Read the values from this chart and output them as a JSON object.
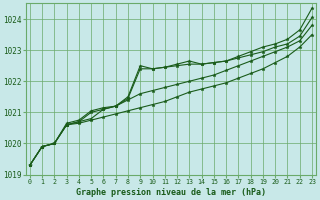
{
  "title": "Graphe pression niveau de la mer (hPa)",
  "bg_color": "#c8e8e8",
  "grid_color": "#6aaa6a",
  "line_color": "#1a5c1a",
  "marker_color": "#1a5c1a",
  "ylim": [
    1019.0,
    1024.5
  ],
  "xlim": [
    -0.3,
    23.3
  ],
  "yticks": [
    1019,
    1020,
    1021,
    1022,
    1023,
    1024
  ],
  "xticks": [
    0,
    1,
    2,
    3,
    4,
    5,
    6,
    7,
    8,
    9,
    10,
    11,
    12,
    13,
    14,
    15,
    16,
    17,
    18,
    19,
    20,
    21,
    22,
    23
  ],
  "series": [
    [
      1019.3,
      1019.9,
      1020.0,
      1020.6,
      1020.65,
      1020.75,
      1020.85,
      1020.95,
      1021.05,
      1021.15,
      1021.25,
      1021.35,
      1021.5,
      1021.65,
      1021.75,
      1021.85,
      1021.95,
      1022.1,
      1022.25,
      1022.4,
      1022.6,
      1022.8,
      1023.1,
      1023.5
    ],
    [
      1019.3,
      1019.9,
      1020.0,
      1020.6,
      1020.7,
      1020.8,
      1021.1,
      1021.2,
      1021.4,
      1021.6,
      1021.7,
      1021.8,
      1021.9,
      1022.0,
      1022.1,
      1022.2,
      1022.35,
      1022.5,
      1022.65,
      1022.8,
      1022.95,
      1023.1,
      1023.3,
      1023.8
    ],
    [
      1019.3,
      1019.9,
      1020.0,
      1020.6,
      1020.7,
      1021.0,
      1021.1,
      1021.2,
      1021.45,
      1022.4,
      1022.4,
      1022.45,
      1022.5,
      1022.55,
      1022.55,
      1022.6,
      1022.65,
      1022.75,
      1022.85,
      1022.95,
      1023.1,
      1023.2,
      1023.45,
      1024.05
    ],
    [
      1019.3,
      1019.9,
      1020.0,
      1020.65,
      1020.75,
      1021.05,
      1021.15,
      1021.2,
      1021.5,
      1022.5,
      1022.4,
      1022.45,
      1022.55,
      1022.65,
      1022.55,
      1022.6,
      1022.65,
      1022.8,
      1022.95,
      1023.1,
      1023.2,
      1023.35,
      1023.65,
      1024.35
    ]
  ]
}
